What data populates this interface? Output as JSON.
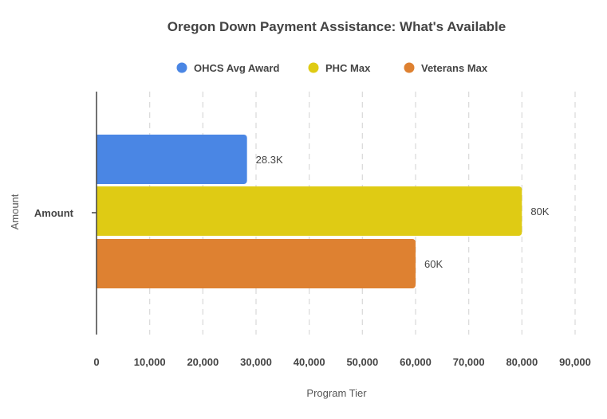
{
  "chart_data": {
    "type": "bar",
    "orientation": "horizontal",
    "title": "Oregon Down Payment Assistance: What's Available",
    "xlabel": "Program Tier",
    "ylabel": "Amount",
    "categories": [
      "Amount"
    ],
    "series": [
      {
        "name": "OHCS Avg Award",
        "values": [
          28300
        ],
        "label": "28.3K",
        "color": "#4a86e4"
      },
      {
        "name": "PHC Max",
        "values": [
          80000
        ],
        "label": "80K",
        "color": "#dfcb14"
      },
      {
        "name": "Veterans Max",
        "values": [
          60000
        ],
        "label": "60K",
        "color": "#de8131"
      }
    ],
    "xlim": [
      0,
      90000
    ],
    "x_ticks": [
      0,
      10000,
      20000,
      30000,
      40000,
      50000,
      60000,
      70000,
      80000,
      90000
    ],
    "x_tick_labels": [
      "0",
      "10,000",
      "20,000",
      "30,000",
      "40,000",
      "50,000",
      "60,000",
      "70,000",
      "80,000",
      "90,000"
    ],
    "grid": "vertical dashed",
    "legend": "top"
  }
}
